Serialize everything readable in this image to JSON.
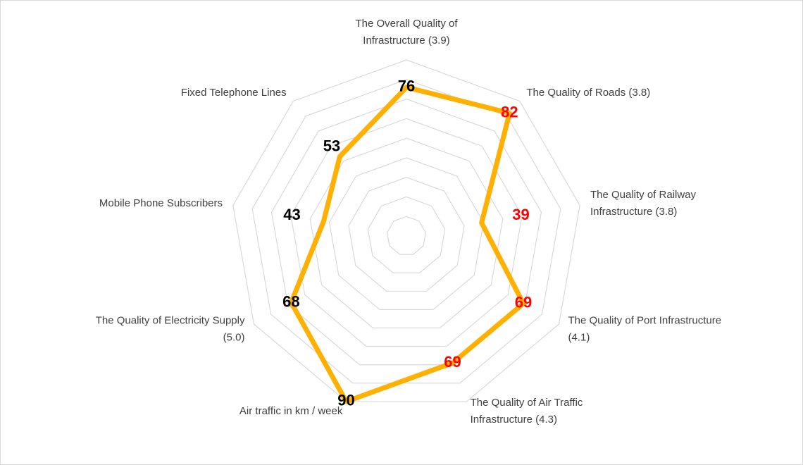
{
  "chart_data": {
    "type": "radar",
    "categories": [
      [
        "The Overall Quality of",
        "Infrastructure (3.9)"
      ],
      [
        "The Quality of Roads (3.8)"
      ],
      [
        "The Quality of Railway",
        "Infrastructure (3.8)"
      ],
      [
        "The Quality of Port Infrastructure",
        "(4.1)"
      ],
      [
        "The Quality of Air Traffic",
        "Infrastructure (4.3)"
      ],
      [
        "Air traffic in km / week"
      ],
      [
        "The Quality of Electricity Supply",
        "(5.0)"
      ],
      [
        "Mobile Phone Subscribers"
      ],
      [
        "Fixed Telephone Lines"
      ]
    ],
    "values": [
      76,
      82,
      39,
      69,
      69,
      90,
      68,
      43,
      53
    ],
    "label_colors": [
      "#000000",
      "#ff0000",
      "#ff0000",
      "#ff0000",
      "#ff0000",
      "#000000",
      "#000000",
      "#000000",
      "#000000"
    ],
    "color": "#ffb000",
    "ylim": [
      0,
      90
    ],
    "yticks": [
      0,
      10,
      20,
      30,
      40,
      50,
      60,
      70,
      80,
      90
    ],
    "grid": true
  }
}
